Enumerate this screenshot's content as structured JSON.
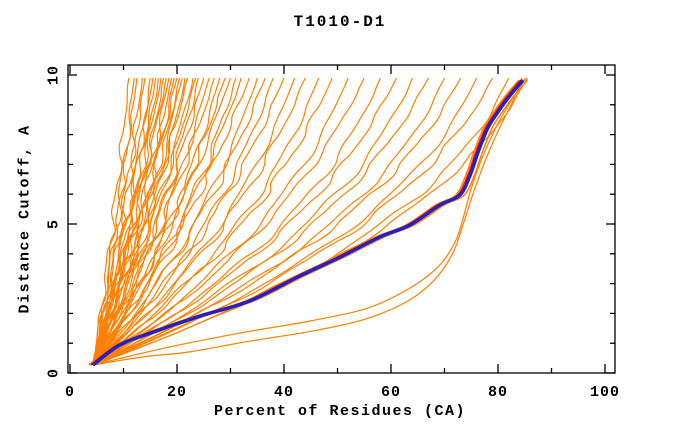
{
  "chart_data": {
    "type": "line",
    "title": "T1010-D1",
    "xlabel": "Percent of Residues (CA)",
    "ylabel": "Distance Cutoff, A",
    "xlim": [
      0,
      102
    ],
    "ylim": [
      0,
      10.35
    ],
    "grid": false,
    "legend": "none",
    "x_ticks_major": [
      0,
      20,
      40,
      60,
      80,
      100
    ],
    "x_ticks_minor": [
      10,
      30,
      50,
      70,
      90
    ],
    "y_ticks_major": [
      0,
      5,
      10
    ],
    "y_ticks_minor": [
      1,
      2,
      3,
      4,
      6,
      7,
      8,
      9
    ],
    "colors": {
      "ensemble": "#ff8000",
      "best": "#ee1100",
      "selected": "#2121cc",
      "axis": "#000000",
      "background": "#ffffff"
    },
    "series": {
      "selected_model": {
        "name": "selected-model",
        "color_key": "selected",
        "points": [
          [
            4.3,
            0.27
          ],
          [
            9.3,
            0.94
          ],
          [
            15.0,
            1.34
          ],
          [
            24.3,
            1.91
          ],
          [
            33.6,
            2.42
          ],
          [
            43.0,
            3.26
          ],
          [
            50.5,
            3.89
          ],
          [
            57.9,
            4.56
          ],
          [
            63.6,
            4.97
          ],
          [
            69.2,
            5.64
          ],
          [
            72.9,
            5.97
          ],
          [
            74.8,
            6.64
          ],
          [
            76.3,
            7.42
          ],
          [
            78.1,
            8.22
          ],
          [
            80.0,
            8.76
          ],
          [
            81.9,
            9.23
          ],
          [
            83.4,
            9.56
          ],
          [
            84.7,
            9.83
          ]
        ]
      },
      "best_model": {
        "name": "best-model",
        "color_key": "best",
        "x_offset_from_selected": -0.4
      },
      "ensemble": {
        "name": "server-models",
        "color_key": "ensemble",
        "start": [
          4.3,
          0.27
        ],
        "top_y": 9.9,
        "hugger_offsets": [
          -0.8,
          0.8
        ],
        "curves": [
          [
            11,
            0.18,
            2.5,
            9,
            0.5
          ],
          [
            12,
            0.22,
            3.0,
            7,
            2.1
          ],
          [
            12.5,
            0.16,
            2.0,
            11,
            4.0
          ],
          [
            13.5,
            0.25,
            3.5,
            8,
            1.2
          ],
          [
            14,
            0.2,
            2.2,
            10,
            5.1
          ],
          [
            15,
            0.28,
            3.0,
            6,
            2.8
          ],
          [
            15.5,
            0.17,
            2.8,
            9,
            3.9
          ],
          [
            16,
            0.24,
            2.0,
            12,
            0.9
          ],
          [
            16.5,
            0.3,
            3.2,
            7,
            4.7
          ],
          [
            17,
            0.21,
            2.6,
            8,
            1.8
          ],
          [
            17.5,
            0.26,
            3.0,
            10,
            3.2
          ],
          [
            18,
            0.19,
            2.4,
            9,
            5.6
          ],
          [
            18.5,
            0.27,
            3.4,
            7,
            2.4
          ],
          [
            19,
            0.23,
            2.1,
            11,
            0.3
          ],
          [
            19.5,
            0.31,
            2.9,
            8,
            4.2
          ],
          [
            20,
            0.2,
            3.1,
            9,
            1.5
          ],
          [
            20.5,
            0.28,
            2.3,
            10,
            3.6
          ],
          [
            21,
            0.24,
            3.3,
            6,
            5.9
          ],
          [
            21.5,
            0.33,
            2.7,
            8,
            2.0
          ],
          [
            22,
            0.22,
            2.5,
            11,
            0.7
          ],
          [
            23,
            0.29,
            3.0,
            7,
            4.4
          ],
          [
            23.5,
            0.25,
            2.2,
            9,
            1.1
          ],
          [
            24,
            0.35,
            3.5,
            8,
            3.0
          ],
          [
            25,
            0.27,
            2.8,
            10,
            5.3
          ],
          [
            26,
            0.32,
            2.4,
            7,
            2.6
          ],
          [
            27,
            0.24,
            3.2,
            9,
            0.1
          ],
          [
            28,
            0.36,
            2.6,
            8,
            4.9
          ],
          [
            29,
            0.3,
            3.0,
            11,
            1.7
          ],
          [
            30,
            0.27,
            2.3,
            7,
            3.4
          ],
          [
            31,
            0.38,
            3.4,
            9,
            5.8
          ],
          [
            32,
            0.33,
            2.7,
            8,
            2.2
          ],
          [
            33.5,
            0.29,
            3.1,
            10,
            0.6
          ],
          [
            35,
            0.41,
            2.5,
            7,
            4.1
          ],
          [
            36.5,
            0.35,
            3.3,
            9,
            1.9
          ],
          [
            38,
            0.44,
            2.8,
            8,
            3.7
          ],
          [
            40,
            0.38,
            3.0,
            10,
            5.5
          ],
          [
            42,
            0.47,
            2.4,
            7,
            2.9
          ],
          [
            44,
            0.42,
            3.2,
            9,
            0.8
          ],
          [
            46.5,
            0.5,
            2.6,
            8,
            4.6
          ],
          [
            49,
            0.45,
            3.4,
            10,
            1.4
          ],
          [
            52,
            0.53,
            2.9,
            7,
            3.3
          ],
          [
            55,
            0.48,
            2.5,
            9,
            5.7
          ],
          [
            58,
            0.56,
            3.1,
            8,
            2.5
          ],
          [
            61,
            0.52,
            2.7,
            10,
            0.4
          ],
          [
            64,
            0.59,
            3.3,
            7,
            4.8
          ],
          [
            67,
            0.55,
            2.8,
            9,
            1.6
          ],
          [
            70,
            0.62,
            2.4,
            8,
            3.8
          ],
          [
            73,
            0.58,
            3.0,
            10,
            5.2
          ],
          [
            76,
            0.65,
            2.6,
            7,
            2.7
          ],
          [
            79,
            0.61,
            3.2,
            9,
            0.2
          ],
          [
            82,
            0.68,
            2.8,
            8,
            4.3
          ],
          [
            85.5,
            0.64,
            2.2,
            9,
            1.0
          ]
        ],
        "outliers": [
          [
            [
              4.3,
              0.27
            ],
            [
              18,
              0.85
            ],
            [
              32,
              1.35
            ],
            [
              45,
              1.75
            ],
            [
              56,
              2.2
            ],
            [
              64,
              2.9
            ],
            [
              69,
              3.6
            ],
            [
              72,
              4.4
            ],
            [
              73.5,
              5.2
            ],
            [
              75,
              6.2
            ],
            [
              77,
              7.2
            ],
            [
              79.5,
              8.2
            ],
            [
              82,
              9.0
            ],
            [
              85.2,
              9.9
            ]
          ],
          [
            [
              4.3,
              0.27
            ],
            [
              14,
              0.55
            ],
            [
              22,
              0.7
            ],
            [
              33,
              1.05
            ],
            [
              45,
              1.4
            ],
            [
              55,
              1.8
            ],
            [
              63,
              2.4
            ],
            [
              68,
              3.1
            ],
            [
              71.5,
              4.0
            ],
            [
              73.5,
              5.0
            ],
            [
              75.5,
              6.1
            ],
            [
              78,
              7.3
            ],
            [
              80.5,
              8.3
            ],
            [
              83,
              9.2
            ],
            [
              84.5,
              9.9
            ]
          ]
        ]
      }
    }
  }
}
